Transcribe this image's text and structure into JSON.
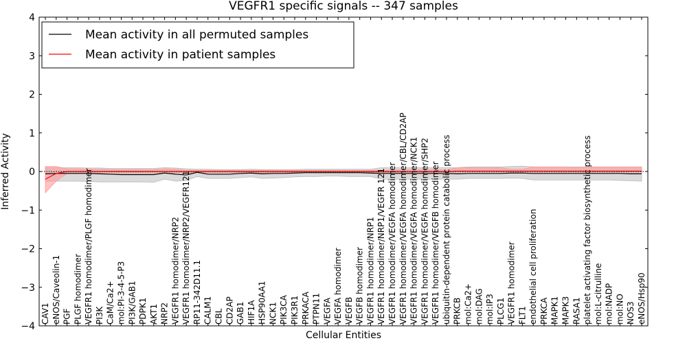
{
  "chart_data": {
    "type": "line",
    "title": "VEGFR1 specific signals -- 347 samples",
    "xlabel": "Cellular Entities",
    "ylabel": "Inferred Activity",
    "ylim": [
      -4,
      4
    ],
    "yticks": [
      -4,
      -3,
      -2,
      -1,
      0,
      1,
      2,
      3,
      4
    ],
    "categories": [
      "CAV1",
      "eNOS/Caveolin-1",
      "PGF",
      "PLGF homodimer",
      "VEGFR1 homodimer/PLGF homodimer",
      "PI3K",
      "CaM/Ca2+",
      "mol:PI-3-4-5-P3",
      "PI3K/GAB1",
      "PDPK1",
      "AKT1",
      "NRP2",
      "VEGFR1 homodimer/NRP2",
      "VEGFR1 homodimer/NRP2/VEGFR121",
      "RP11-342D11.1",
      "CALM1",
      "CBL",
      "CD2AP",
      "GAB1",
      "HIF1A",
      "HSP90AA1",
      "NCK1",
      "PIK3CA",
      "PIK3R1",
      "PRKACA",
      "PTPN11",
      "VEGFA",
      "VEGFA homodimer",
      "VEGFB",
      "VEGFB homodimer",
      "VEGFR1 homodimer/NRP1",
      "VEGFR1 homodimer/NRP1/VEGFR 121",
      "VEGFR1 homodimer/VEGFA homodimer",
      "VEGFR1 homodimer/VEGFA homodimer/CBL/CD2AP",
      "VEGFR1 homodimer/VEGFA homodimer/NCK1",
      "VEGFR1 homodimer/VEGFA homodimer/SHP2",
      "VEGFR1 homodimer/VEGFB homodimer",
      "ubiquitin-dependent protein catabolic process",
      "PRKCB",
      "mol:Ca2+",
      "mol:DAG",
      "mol:IP3",
      "PLCG1",
      "VEGFR1 homodimer",
      "FLT1",
      "endothelial cell proliferation",
      "PRKCA",
      "MAPK1",
      "MAPK3",
      "RASA1",
      "platelet activating factor biosynthetic process",
      "mol:L-citrulline",
      "mol:NADP",
      "mol:NO",
      "NOS3",
      "eNOS/Hsp90"
    ],
    "series": [
      {
        "name": "Mean activity in all permuted samples",
        "color": "#000000",
        "band_color": "#bbbbbb",
        "values": [
          -0.06,
          -0.05,
          -0.05,
          -0.05,
          -0.05,
          -0.06,
          -0.07,
          -0.08,
          -0.08,
          -0.08,
          -0.08,
          -0.04,
          -0.07,
          -0.09,
          -0.02,
          -0.07,
          -0.07,
          -0.07,
          -0.05,
          -0.04,
          -0.06,
          -0.05,
          -0.05,
          -0.04,
          -0.03,
          -0.03,
          -0.03,
          -0.03,
          -0.03,
          -0.03,
          -0.04,
          -0.05,
          -0.05,
          -0.05,
          -0.05,
          -0.05,
          -0.05,
          -0.05,
          -0.06,
          -0.05,
          -0.05,
          -0.05,
          -0.05,
          -0.04,
          -0.04,
          -0.05,
          -0.05,
          -0.05,
          -0.05,
          -0.05,
          -0.05,
          -0.05,
          -0.05,
          -0.05,
          -0.06,
          -0.06
        ],
        "lower": [
          -0.25,
          -0.25,
          -0.25,
          -0.25,
          -0.26,
          -0.27,
          -0.27,
          -0.27,
          -0.27,
          -0.27,
          -0.28,
          -0.2,
          -0.25,
          -0.23,
          -0.13,
          -0.18,
          -0.18,
          -0.18,
          -0.16,
          -0.14,
          -0.18,
          -0.17,
          -0.16,
          -0.14,
          -0.13,
          -0.13,
          -0.12,
          -0.12,
          -0.13,
          -0.13,
          -0.13,
          -0.2,
          -0.2,
          -0.2,
          -0.2,
          -0.2,
          -0.2,
          -0.2,
          -0.2,
          -0.18,
          -0.18,
          -0.18,
          -0.18,
          -0.17,
          -0.18,
          -0.22,
          -0.22,
          -0.22,
          -0.22,
          -0.22,
          -0.22,
          -0.22,
          -0.22,
          -0.23,
          -0.24,
          -0.25
        ],
        "upper": [
          0.1,
          0.1,
          0.1,
          0.1,
          0.09,
          0.09,
          0.08,
          0.08,
          0.08,
          0.08,
          0.08,
          0.1,
          0.09,
          0.07,
          0.06,
          0.06,
          0.05,
          0.05,
          0.05,
          0.06,
          0.05,
          0.05,
          0.05,
          0.05,
          0.06,
          0.06,
          0.06,
          0.06,
          0.06,
          0.06,
          0.06,
          0.1,
          0.1,
          0.1,
          0.1,
          0.1,
          0.1,
          0.1,
          0.1,
          0.12,
          0.12,
          0.12,
          0.12,
          0.13,
          0.14,
          0.12,
          0.12,
          0.12,
          0.12,
          0.12,
          0.12,
          0.12,
          0.12,
          0.12,
          0.12,
          0.12
        ]
      },
      {
        "name": "Mean activity in patient samples",
        "color": "#ff0000",
        "band_color": "#ff9a9a",
        "values": [
          -0.2,
          -0.05,
          0.0,
          0.0,
          0.0,
          0.0,
          0.0,
          0.0,
          0.0,
          0.0,
          0.0,
          0.0,
          0.0,
          0.0,
          0.0,
          0.0,
          0.0,
          0.0,
          0.0,
          0.0,
          0.0,
          0.0,
          0.0,
          0.0,
          0.0,
          0.0,
          0.0,
          0.0,
          0.0,
          0.0,
          0.0,
          0.0,
          0.0,
          0.0,
          0.0,
          0.0,
          0.0,
          0.0,
          0.01,
          0.01,
          0.01,
          0.01,
          0.01,
          0.01,
          0.01,
          0.01,
          0.01,
          0.01,
          0.01,
          0.01,
          0.01,
          0.01,
          0.01,
          0.01,
          0.01,
          0.01
        ],
        "lower": [
          -0.55,
          -0.25,
          -0.05,
          -0.05,
          -0.05,
          -0.04,
          -0.04,
          -0.04,
          -0.04,
          -0.04,
          -0.04,
          -0.04,
          -0.04,
          -0.04,
          -0.03,
          -0.03,
          -0.03,
          -0.03,
          -0.03,
          -0.03,
          -0.03,
          -0.03,
          -0.03,
          -0.03,
          -0.03,
          -0.03,
          -0.03,
          -0.03,
          -0.03,
          -0.03,
          -0.03,
          -0.03,
          -0.03,
          -0.03,
          -0.03,
          -0.03,
          -0.03,
          -0.03,
          -0.02,
          -0.02,
          -0.02,
          -0.02,
          -0.02,
          -0.02,
          -0.02,
          -0.02,
          -0.02,
          -0.02,
          -0.02,
          -0.02,
          -0.02,
          -0.02,
          -0.02,
          -0.02,
          -0.02,
          -0.02
        ],
        "upper": [
          0.13,
          0.13,
          0.07,
          0.07,
          0.06,
          0.06,
          0.05,
          0.05,
          0.05,
          0.05,
          0.05,
          0.07,
          0.06,
          0.03,
          0.03,
          0.03,
          0.03,
          0.03,
          0.03,
          0.03,
          0.03,
          0.03,
          0.03,
          0.03,
          0.03,
          0.03,
          0.03,
          0.03,
          0.03,
          0.03,
          0.03,
          0.03,
          0.04,
          0.05,
          0.05,
          0.05,
          0.05,
          0.04,
          0.1,
          0.1,
          0.1,
          0.1,
          0.1,
          0.06,
          0.06,
          0.12,
          0.12,
          0.12,
          0.12,
          0.1,
          0.12,
          0.12,
          0.12,
          0.12,
          0.12,
          0.12
        ]
      }
    ],
    "legend_position": "top-left",
    "grid": false
  }
}
